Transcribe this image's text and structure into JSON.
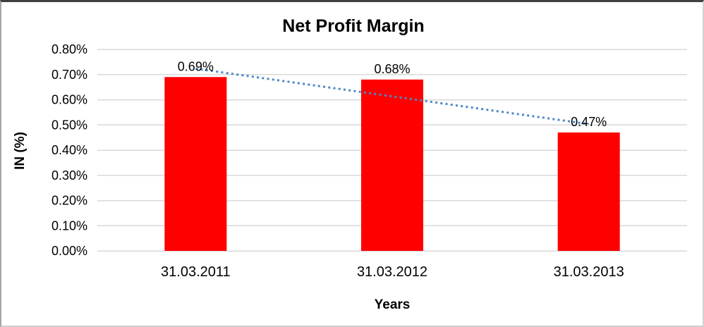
{
  "chart_data": {
    "type": "bar",
    "title": "Net Profit Margin",
    "xlabel": "Years",
    "ylabel": "IN (%)",
    "categories": [
      "31.03.2011",
      "31.03.2012",
      "31.03.2013"
    ],
    "values": [
      0.69,
      0.68,
      0.47
    ],
    "data_labels": [
      "0.69%",
      "0.68%",
      "0.47%"
    ],
    "y_ticks": [
      "0.00%",
      "0.10%",
      "0.20%",
      "0.30%",
      "0.40%",
      "0.50%",
      "0.60%",
      "0.70%",
      "0.80%"
    ],
    "ylim": [
      0,
      0.8
    ],
    "y_tick_step": 0.1,
    "grid": "horizontal",
    "legend": "none",
    "colors": {
      "bar": "#FF0000",
      "gridline": "#D9D9D9",
      "trendline": "#4E86C8",
      "text": "#000000"
    },
    "trendline": {
      "type": "linear",
      "style": "dotted",
      "fitted_points": [
        0.7233,
        0.6133,
        0.5033
      ]
    }
  }
}
